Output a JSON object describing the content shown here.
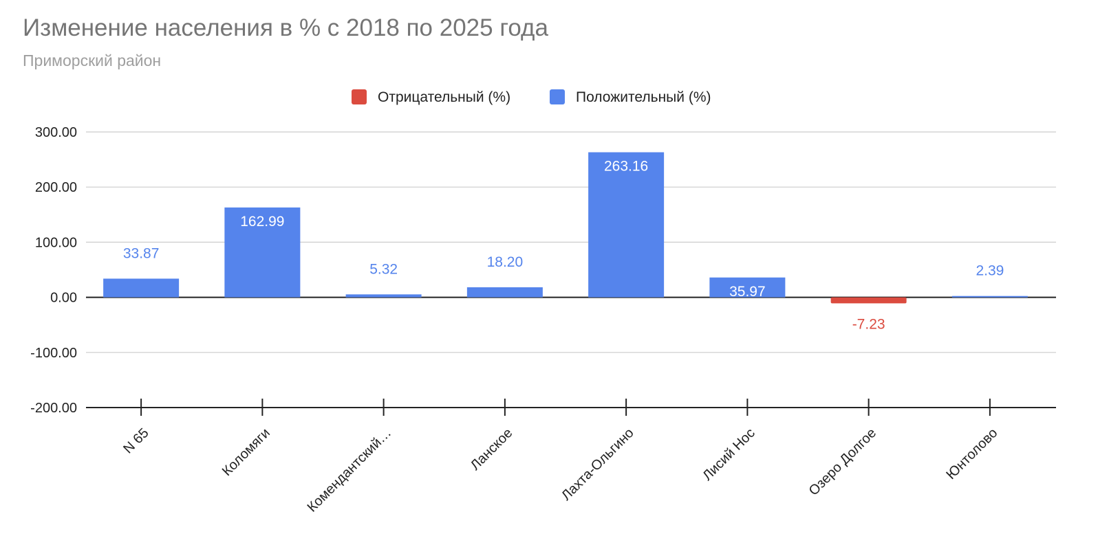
{
  "chart_data": {
    "type": "bar",
    "title": "Изменение населения в % с 2018 по 2025 года",
    "subtitle": "Приморский район",
    "legend": [
      {
        "name": "Отрицательный (%)",
        "color": "#DB4B3F"
      },
      {
        "name": "Положительный (%)",
        "color": "#5584EC"
      }
    ],
    "legend_position": "top",
    "categories": [
      "N 65",
      "Коломяги",
      "Комендантский…",
      "Ланское",
      "Лахта-Ольгино",
      "Лисий Нос",
      "Озеро Долгое",
      "Юнтолово"
    ],
    "values": [
      33.87,
      162.99,
      5.32,
      18.2,
      263.16,
      35.97,
      -7.23,
      2.39
    ],
    "value_labels": [
      "33.87",
      "162.99",
      "5.32",
      "18.20",
      "263.16",
      "35.97",
      "-7.23",
      "2.39"
    ],
    "ylim": [
      -200,
      300
    ],
    "yticks": [
      300,
      200,
      100,
      0,
      -100,
      -200
    ],
    "ytick_labels": [
      "300.00",
      "200.00",
      "100.00",
      "0.00",
      "-100.00",
      "-200.00"
    ],
    "grid": true,
    "xlabel": "",
    "ylabel": ""
  }
}
